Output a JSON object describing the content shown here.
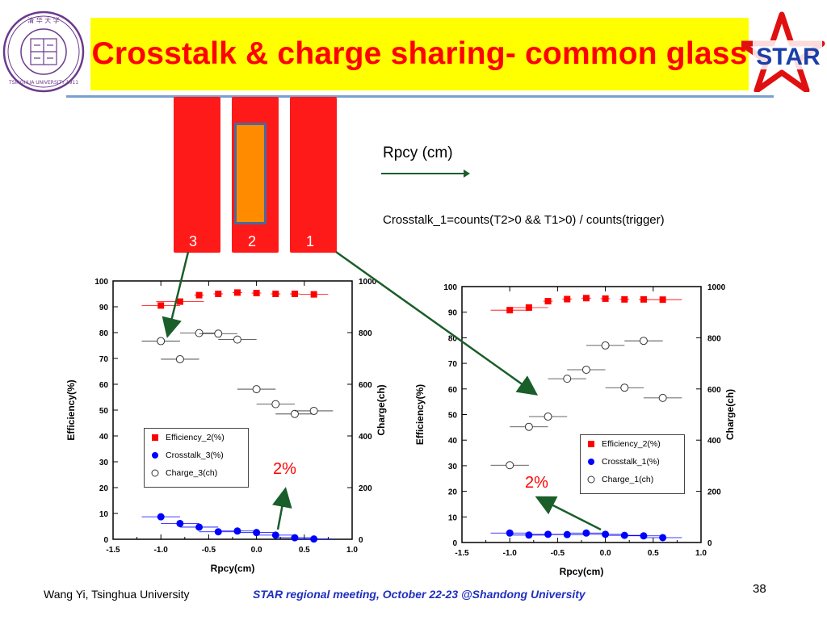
{
  "slide": {
    "title": "Crosstalk & charge sharing- common glass",
    "footer_author": "Wang Yi, Tsinghua University",
    "footer_meeting": "STAR regional meeting, October 22-23 @Shandong University",
    "slide_number": "38",
    "colors": {
      "title_bg": "#ffff00",
      "title_text": "#ff0000",
      "strip": "#ff1a1a",
      "pad": "#ff8c00",
      "arrow": "#1a5e2a",
      "rule": "#7aa0cf"
    }
  },
  "logos": {
    "left_seal_text": "TSINGHUA UNIVERSITY 1911",
    "star_logo_text": "STAR"
  },
  "schematic": {
    "strip_labels": [
      "3",
      "2",
      "1"
    ],
    "axis_label": "Rpcy (cm)",
    "formula": "Crosstalk_1=counts(T2>0 && T1>0) / counts(trigger)"
  },
  "chart_data": [
    {
      "type": "scatter",
      "xlabel": "Rpcy(cm)",
      "ylabel": "Efficiency(%)",
      "y2label": "Charge(ch)",
      "xlim": [
        -1.5,
        1.0
      ],
      "ylim": [
        0,
        100
      ],
      "y2lim": [
        0,
        1000
      ],
      "xticks": [
        "-1.5",
        "-1.0",
        "-0.5",
        "0.0",
        "0.5",
        "1.0"
      ],
      "yticks": [
        "0",
        "10",
        "20",
        "30",
        "40",
        "50",
        "60",
        "70",
        "80",
        "90",
        "100"
      ],
      "y2ticks": [
        "0",
        "200",
        "400",
        "600",
        "800",
        "1000"
      ],
      "annotation": "2%",
      "legend_position": "lower-left-center",
      "series": [
        {
          "name": "Efficiency_2(%)",
          "marker": "square",
          "color": "#ff0000",
          "axis": "left",
          "x": [
            -1.0,
            -0.8,
            -0.6,
            -0.4,
            -0.2,
            0.0,
            0.2,
            0.4,
            0.6
          ],
          "y": [
            90.5,
            92,
            94.5,
            95,
            95.5,
            95.3,
            95,
            95,
            94.8
          ],
          "xerr": [
            0.2,
            0.25,
            0.05,
            0.05,
            0.05,
            0.05,
            0.05,
            0.05,
            0.15
          ]
        },
        {
          "name": "Crosstalk_3(%)",
          "marker": "circle",
          "color": "#0000ff",
          "axis": "left",
          "x": [
            -1.0,
            -0.8,
            -0.6,
            -0.4,
            -0.2,
            0.0,
            0.2,
            0.4,
            0.6
          ],
          "y": [
            8.7,
            6.1,
            4.7,
            2.9,
            3.2,
            2.6,
            1.6,
            0.6,
            0.1
          ],
          "xerr": [
            0.2,
            0.2,
            0.2,
            0.2,
            0.2,
            0.2,
            0.2,
            0.2,
            0.2
          ]
        },
        {
          "name": "Charge_3(ch)",
          "marker": "open-circle",
          "color": "#333333",
          "axis": "right",
          "x": [
            -1.0,
            -0.8,
            -0.6,
            -0.4,
            -0.2,
            0.0,
            0.2,
            0.4,
            0.6
          ],
          "y": [
            767,
            697,
            798,
            796,
            773,
            581,
            523,
            485,
            497
          ],
          "xerr": [
            0.2,
            0.2,
            0.2,
            0.2,
            0.2,
            0.2,
            0.2,
            0.2,
            0.2
          ]
        }
      ]
    },
    {
      "type": "scatter",
      "xlabel": "Rpcy(cm)",
      "ylabel": "Efficiency(%)",
      "y2label": "Charge(ch)",
      "xlim": [
        -1.5,
        1.0
      ],
      "ylim": [
        0,
        100
      ],
      "y2lim": [
        0,
        1000
      ],
      "xticks": [
        "-1.5",
        "-1.0",
        "-0.5",
        "0.0",
        "0.5",
        "1.0"
      ],
      "yticks": [
        "0",
        "10",
        "20",
        "30",
        "40",
        "50",
        "60",
        "70",
        "80",
        "90",
        "100"
      ],
      "y2ticks": [
        "0",
        "200",
        "400",
        "600",
        "800",
        "1000"
      ],
      "annotation": "2%",
      "legend_position": "right-center",
      "series": [
        {
          "name": "Efficiency_2(%)",
          "marker": "square",
          "color": "#ff0000",
          "axis": "left",
          "x": [
            -1.0,
            -0.8,
            -0.6,
            -0.4,
            -0.2,
            0.0,
            0.2,
            0.4,
            0.6
          ],
          "y": [
            90.8,
            91.8,
            94.3,
            95.1,
            95.5,
            95.3,
            95,
            95,
            94.9
          ],
          "xerr": [
            0.2,
            0.2,
            0.05,
            0.05,
            0.05,
            0.05,
            0.05,
            0.05,
            0.2
          ]
        },
        {
          "name": "Crosstalk_1(%)",
          "marker": "circle",
          "color": "#0000ff",
          "axis": "left",
          "x": [
            -1.0,
            -0.8,
            -0.6,
            -0.4,
            -0.2,
            0.0,
            0.2,
            0.4,
            0.6
          ],
          "y": [
            3.7,
            2.9,
            3.2,
            3.1,
            3.7,
            3.2,
            2.8,
            2.6,
            1.9
          ],
          "xerr": [
            0.2,
            0.2,
            0.2,
            0.2,
            0.2,
            0.2,
            0.2,
            0.2,
            0.2
          ]
        },
        {
          "name": "Charge_1(ch)",
          "marker": "open-circle",
          "color": "#333333",
          "axis": "right",
          "x": [
            -1.0,
            -0.8,
            -0.6,
            -0.4,
            -0.2,
            0.0,
            0.2,
            0.4,
            0.6
          ],
          "y": [
            302,
            452,
            492,
            640,
            675,
            770,
            605,
            788,
            565
          ],
          "xerr": [
            0.2,
            0.2,
            0.2,
            0.2,
            0.2,
            0.2,
            0.2,
            0.2,
            0.2
          ]
        }
      ]
    }
  ]
}
